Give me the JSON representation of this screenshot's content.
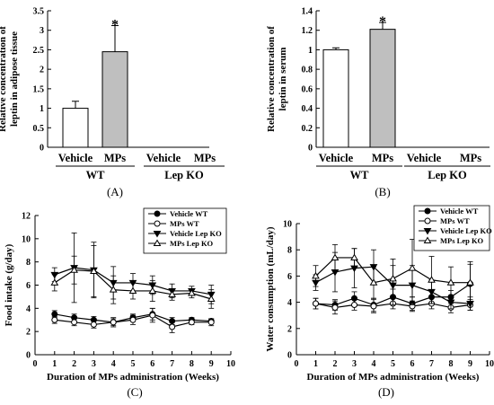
{
  "chart_data": [
    {
      "panel": "(A)",
      "type": "bar",
      "ylabel_line1": "Relative concentration of",
      "ylabel_line2": "leptin in adipose tissue",
      "ylim": [
        0,
        3.5
      ],
      "yticks": [
        "0",
        "0.5",
        "1",
        "1.5",
        "2",
        "2.5",
        "3",
        "3.5"
      ],
      "yticks_values": [
        0,
        0.5,
        1,
        1.5,
        2,
        2.5,
        3,
        3.5
      ],
      "categories": [
        "Vehicle",
        "MPs",
        "Vehicle",
        "MPs"
      ],
      "groups": [
        "WT",
        "Lep KO"
      ],
      "values": [
        1.0,
        2.45,
        null,
        null
      ],
      "errors": [
        0.18,
        0.67,
        null,
        null
      ],
      "fills": [
        "#ffffff",
        "#bfbfbf"
      ],
      "annotations": [
        "",
        "*",
        "",
        ""
      ]
    },
    {
      "panel": "(B)",
      "type": "bar",
      "ylabel_line1": "Relative concentration of",
      "ylabel_line2": "leptin in serum",
      "ylim": [
        0,
        1.4
      ],
      "yticks": [
        "0",
        "0.2",
        "0.4",
        "0.6",
        "0.8",
        "1",
        "1.2",
        "1.4"
      ],
      "yticks_values": [
        0,
        0.2,
        0.4,
        0.6,
        0.8,
        1.0,
        1.2,
        1.4
      ],
      "categories": [
        "Vehicle",
        "MPs",
        "Vehicle",
        "MPs"
      ],
      "groups": [
        "WT",
        "Lep KO"
      ],
      "values": [
        1.0,
        1.21,
        null,
        null
      ],
      "errors": [
        0.02,
        0.07,
        null,
        null
      ],
      "fills": [
        "#ffffff",
        "#bfbfbf"
      ],
      "annotations": [
        "",
        "*",
        "",
        ""
      ]
    },
    {
      "panel": "(C)",
      "type": "line",
      "xlabel": "Duration of MPs administration (Weeks)",
      "ylabel": "Food intake (g/day)",
      "xlim": [
        0,
        10
      ],
      "ylim": [
        0,
        12
      ],
      "xticks": [
        "0",
        "1",
        "2",
        "3",
        "4",
        "5",
        "6",
        "7",
        "8",
        "9",
        "10"
      ],
      "yticks": [
        "0",
        "2",
        "4",
        "6",
        "8",
        "10",
        "12"
      ],
      "x": [
        1,
        2,
        3,
        4,
        5,
        6,
        7,
        8,
        9
      ],
      "legend_position": "top-right",
      "series": [
        {
          "name": "Vehicle WT",
          "marker": "circle-filled",
          "values": [
            3.5,
            3.2,
            3.0,
            2.8,
            3.2,
            3.5,
            2.9,
            3.0,
            2.9
          ],
          "errors": [
            0.3,
            0.3,
            0.3,
            0.3,
            0.3,
            0.5,
            0.3,
            0.2,
            0.2
          ]
        },
        {
          "name": "MPs WT",
          "marker": "circle-open",
          "values": [
            3.0,
            2.8,
            2.6,
            2.8,
            3.0,
            3.4,
            2.4,
            2.8,
            2.8
          ],
          "errors": [
            0.3,
            0.3,
            0.3,
            0.4,
            0.4,
            0.6,
            0.5,
            0.2,
            0.3
          ]
        },
        {
          "name": "Vehicle Lep KO",
          "marker": "triangle-down-filled",
          "values": [
            6.9,
            7.5,
            7.3,
            6.2,
            6.2,
            6.0,
            5.5,
            5.5,
            5.2
          ],
          "errors": [
            0.6,
            3.0,
            2.4,
            1.4,
            0.8,
            0.8,
            0.6,
            0.4,
            0.8
          ]
        },
        {
          "name": "MPs Lep KO",
          "marker": "triangle-up-open",
          "values": [
            6.2,
            7.3,
            7.2,
            5.6,
            5.5,
            5.5,
            5.2,
            5.3,
            4.8
          ],
          "errors": [
            0.7,
            1.2,
            2.2,
            1.2,
            0.7,
            0.9,
            0.5,
            0.4,
            0.8
          ]
        }
      ]
    },
    {
      "panel": "(D)",
      "type": "line",
      "xlabel": "Duration of MPs administration (Weeks)",
      "ylabel": "Water consumption (mL/day)",
      "xlim": [
        0,
        10
      ],
      "ylim": [
        0,
        10
      ],
      "xticks": [
        "0",
        "1",
        "2",
        "3",
        "4",
        "5",
        "6",
        "7",
        "8",
        "9",
        "10"
      ],
      "yticks": [
        "0",
        "2",
        "4",
        "6",
        "8",
        "10"
      ],
      "x": [
        1,
        2,
        3,
        4,
        5,
        6,
        7,
        8,
        9
      ],
      "legend_position": "top-right",
      "series": [
        {
          "name": "Vehicle WT",
          "marker": "circle-filled",
          "values": [
            3.9,
            3.8,
            4.3,
            3.8,
            4.4,
            3.9,
            4.4,
            4.4,
            5.4
          ],
          "errors": [
            0.4,
            0.4,
            0.5,
            0.5,
            0.6,
            0.5,
            0.5,
            0.5,
            1.5
          ]
        },
        {
          "name": "MPs WT",
          "marker": "circle-open",
          "values": [
            3.9,
            3.6,
            3.8,
            3.7,
            3.9,
            3.7,
            3.9,
            3.6,
            3.8
          ],
          "errors": [
            0.4,
            0.5,
            0.4,
            0.5,
            0.4,
            0.4,
            0.4,
            0.4,
            0.4
          ]
        },
        {
          "name": "Vehicle Lep KO",
          "marker": "triangle-down-filled",
          "values": [
            5.5,
            6.3,
            6.6,
            6.7,
            5.3,
            5.3,
            4.8,
            4.0,
            3.9
          ],
          "errors": [
            0.6,
            1.5,
            1.5,
            1.3,
            1.5,
            1.5,
            0.9,
            0.5,
            0.5
          ]
        },
        {
          "name": "MPs Lep KO",
          "marker": "triangle-up-open",
          "values": [
            6.0,
            7.4,
            7.4,
            5.5,
            5.8,
            6.6,
            5.7,
            5.5,
            5.5
          ],
          "errors": [
            0.8,
            1.0,
            0.7,
            1.2,
            1.5,
            2.2,
            1.8,
            1.2,
            1.6
          ]
        }
      ]
    }
  ]
}
